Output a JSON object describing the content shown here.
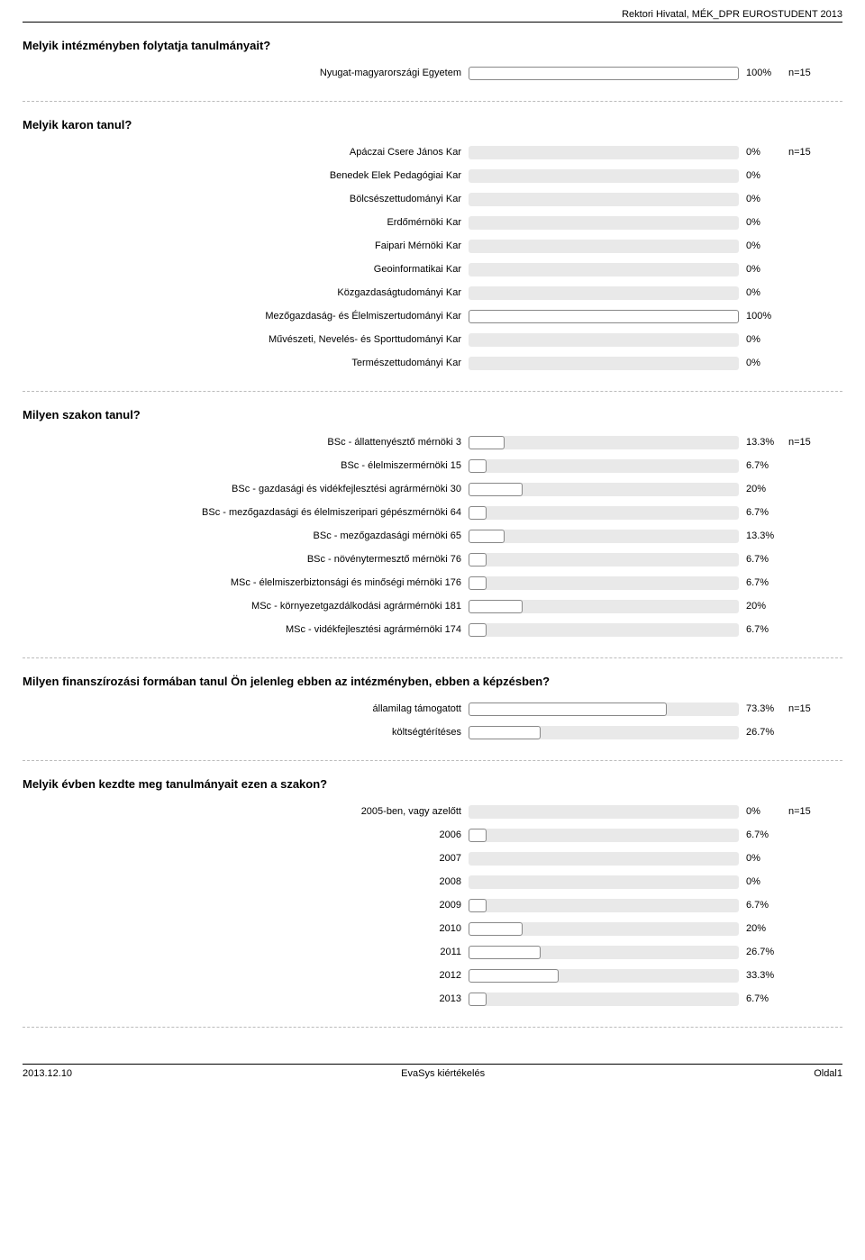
{
  "header": "Rektori Hivatal, MÉK_DPR EUROSTUDENT 2013",
  "bar_track_width": 300,
  "colors": {
    "track": "#e9e9e9",
    "fill_bg": "#ffffff",
    "fill_border": "#888888",
    "dash": "#bbbbbb"
  },
  "sections": [
    {
      "title": "Melyik intézményben folytatja tanulmányait?",
      "n": "n=15",
      "rows": [
        {
          "label": "Nyugat-magyarországi Egyetem",
          "pct": 100,
          "pct_label": "100%"
        }
      ]
    },
    {
      "title": "Melyik karon tanul?",
      "n": "n=15",
      "rows": [
        {
          "label": "Apáczai Csere János Kar",
          "pct": 0,
          "pct_label": "0%"
        },
        {
          "label": "Benedek Elek Pedagógiai Kar",
          "pct": 0,
          "pct_label": "0%"
        },
        {
          "label": "Bölcsészettudományi Kar",
          "pct": 0,
          "pct_label": "0%"
        },
        {
          "label": "Erdőmérnöki Kar",
          "pct": 0,
          "pct_label": "0%"
        },
        {
          "label": "Faipari Mérnöki Kar",
          "pct": 0,
          "pct_label": "0%"
        },
        {
          "label": "Geoinformatikai Kar",
          "pct": 0,
          "pct_label": "0%"
        },
        {
          "label": "Közgazdaságtudományi Kar",
          "pct": 0,
          "pct_label": "0%"
        },
        {
          "label": "Mezőgazdaság- és Élelmiszertudományi Kar",
          "pct": 100,
          "pct_label": "100%"
        },
        {
          "label": "Művészeti, Nevelés- és Sporttudományi Kar",
          "pct": 0,
          "pct_label": "0%"
        },
        {
          "label": "Természettudományi Kar",
          "pct": 0,
          "pct_label": "0%"
        }
      ]
    },
    {
      "title": "Milyen szakon tanul?",
      "n": "n=15",
      "rows": [
        {
          "label": "BSc - állattenyésztő mérnöki 3",
          "pct": 13.3,
          "pct_label": "13.3%"
        },
        {
          "label": "BSc - élelmiszermérnöki 15",
          "pct": 6.7,
          "pct_label": "6.7%"
        },
        {
          "label": "BSc - gazdasági és vidékfejlesztési agrármérnöki 30",
          "pct": 20,
          "pct_label": "20%"
        },
        {
          "label": "BSc - mezőgazdasági és élelmiszeripari gépészmérnöki 64",
          "pct": 6.7,
          "pct_label": "6.7%"
        },
        {
          "label": "BSc - mezőgazdasági mérnöki 65",
          "pct": 13.3,
          "pct_label": "13.3%"
        },
        {
          "label": "BSc - növénytermesztő mérnöki 76",
          "pct": 6.7,
          "pct_label": "6.7%"
        },
        {
          "label": "MSc - élelmiszerbiztonsági és minőségi mérnöki 176",
          "pct": 6.7,
          "pct_label": "6.7%"
        },
        {
          "label": "MSc - környezetgazdálkodási agrármérnöki 181",
          "pct": 20,
          "pct_label": "20%"
        },
        {
          "label": "MSc - vidékfejlesztési agrármérnöki 174",
          "pct": 6.7,
          "pct_label": "6.7%"
        }
      ]
    },
    {
      "title": "Milyen finanszírozási formában tanul Ön jelenleg ebben az intézményben, ebben a képzésben?",
      "n": "n=15",
      "rows": [
        {
          "label": "államilag támogatott",
          "pct": 73.3,
          "pct_label": "73.3%"
        },
        {
          "label": "költségtérítéses",
          "pct": 26.7,
          "pct_label": "26.7%"
        }
      ]
    },
    {
      "title": "Melyik évben kezdte meg tanulmányait ezen a szakon?",
      "n": "n=15",
      "rows": [
        {
          "label": "2005-ben, vagy azelőtt",
          "pct": 0,
          "pct_label": "0%"
        },
        {
          "label": "2006",
          "pct": 6.7,
          "pct_label": "6.7%"
        },
        {
          "label": "2007",
          "pct": 0,
          "pct_label": "0%"
        },
        {
          "label": "2008",
          "pct": 0,
          "pct_label": "0%"
        },
        {
          "label": "2009",
          "pct": 6.7,
          "pct_label": "6.7%"
        },
        {
          "label": "2010",
          "pct": 20,
          "pct_label": "20%"
        },
        {
          "label": "2011",
          "pct": 26.7,
          "pct_label": "26.7%"
        },
        {
          "label": "2012",
          "pct": 33.3,
          "pct_label": "33.3%"
        },
        {
          "label": "2013",
          "pct": 6.7,
          "pct_label": "6.7%"
        }
      ]
    }
  ],
  "footer": {
    "left": "2013.12.10",
    "center": "EvaSys kiértékelés",
    "right": "Oldal1"
  }
}
